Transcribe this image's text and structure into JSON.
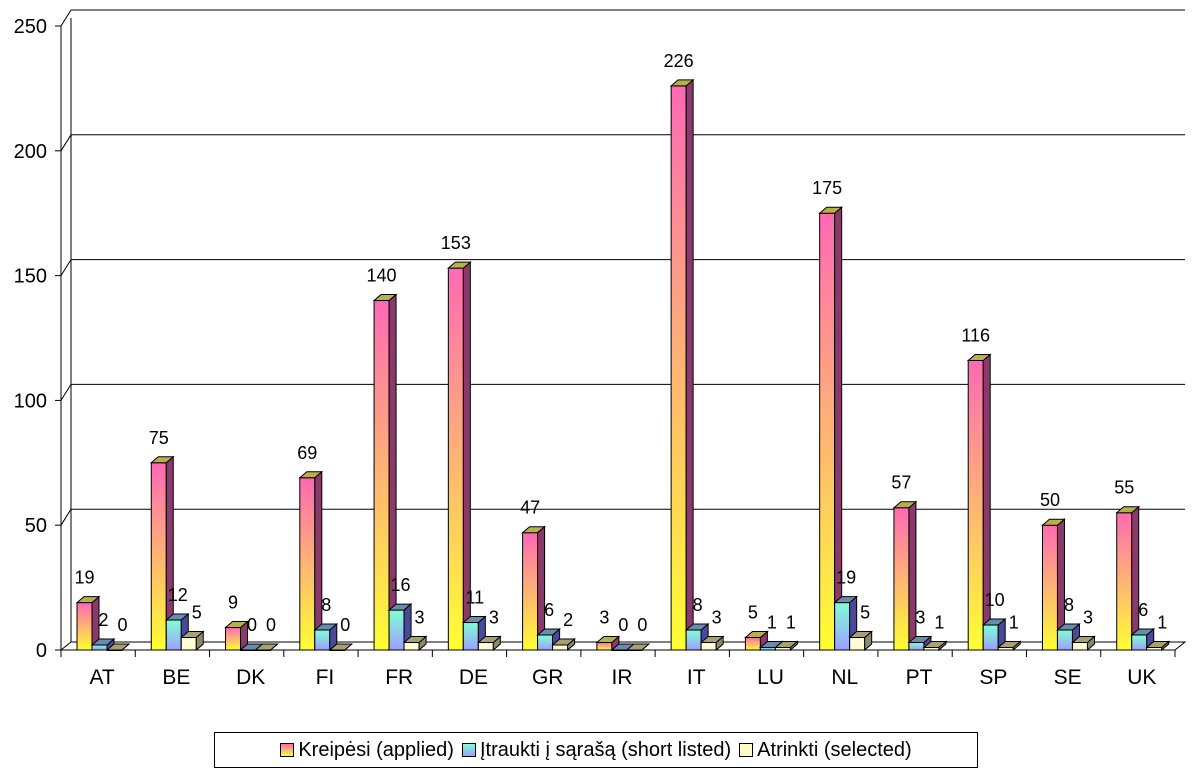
{
  "chart_data": {
    "type": "bar",
    "categories": [
      "AT",
      "BE",
      "DK",
      "FI",
      "FR",
      "DE",
      "GR",
      "IR",
      "IT",
      "LU",
      "NL",
      "PT",
      "SP",
      "SE",
      "UK"
    ],
    "series": [
      {
        "name": "Kreipėsi (applied)",
        "values": [
          19,
          75,
          9,
          69,
          140,
          153,
          47,
          3,
          226,
          5,
          175,
          57,
          116,
          50,
          55
        ],
        "color": "#ff69b4",
        "color2": "#ffff33"
      },
      {
        "name": "Įtraukti į sąrašą (short listed)",
        "values": [
          2,
          12,
          0,
          8,
          16,
          11,
          6,
          0,
          8,
          1,
          19,
          3,
          10,
          8,
          6
        ],
        "color": "#6a6ae6",
        "color2": "#7fffd4"
      },
      {
        "name": "Atrinkti (selected)",
        "values": [
          0,
          5,
          0,
          0,
          3,
          3,
          2,
          0,
          3,
          1,
          5,
          1,
          1,
          3,
          1
        ],
        "color": "#fffbc8",
        "color2": "#fffbc8"
      }
    ],
    "ylim": [
      0,
      250
    ],
    "yticks": [
      0,
      50,
      100,
      150,
      200,
      250
    ],
    "grid": true,
    "legend_position": "bottom",
    "style": "3d-column"
  }
}
